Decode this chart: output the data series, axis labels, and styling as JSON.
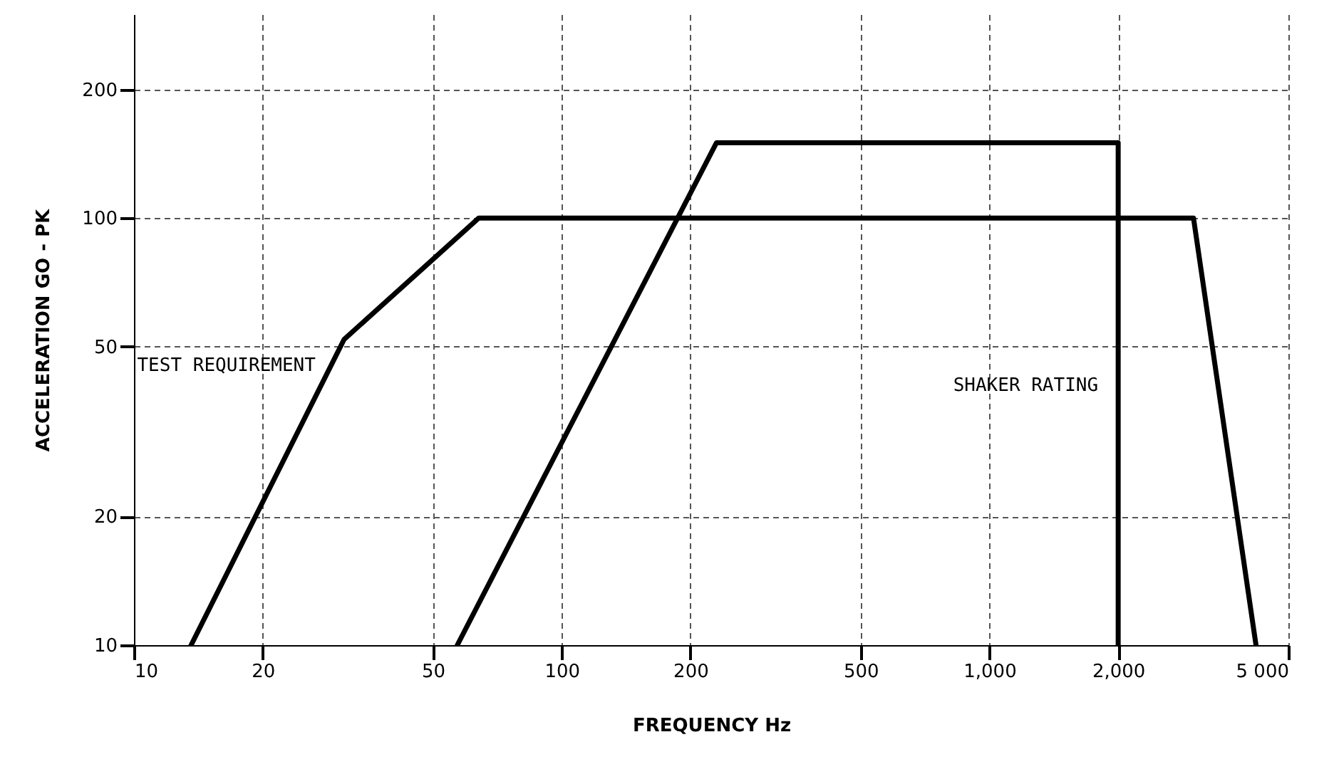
{
  "chart_data": {
    "type": "line",
    "xlabel": "FREQUENCY Hz",
    "ylabel": "ACCELERATION GO - PK",
    "log": "xy",
    "xlim": [
      10,
      5000
    ],
    "ylim": [
      10,
      300
    ],
    "xticks": [
      10,
      20,
      50,
      100,
      200,
      500,
      {
        "value": 1000,
        "label": "1,000"
      },
      {
        "value": 2000,
        "label": "2,000"
      },
      {
        "value": 5000,
        "label": "5 000"
      }
    ],
    "yticks": [
      10,
      20,
      50,
      100,
      200
    ],
    "grid": true,
    "legend": false,
    "marker": "none",
    "line_style": "solid",
    "series": [
      {
        "name": "TEST REQUIREMENT",
        "color": "#000000",
        "x": [
          13.6,
          31,
          64,
          3000,
          4200
        ],
        "values": [
          10,
          52,
          100,
          100,
          10
        ]
      },
      {
        "name": "SHAKER RATING",
        "color": "#000000",
        "x": [
          57,
          230,
          2000,
          2000
        ],
        "values": [
          10,
          150,
          150,
          10
        ]
      }
    ]
  }
}
